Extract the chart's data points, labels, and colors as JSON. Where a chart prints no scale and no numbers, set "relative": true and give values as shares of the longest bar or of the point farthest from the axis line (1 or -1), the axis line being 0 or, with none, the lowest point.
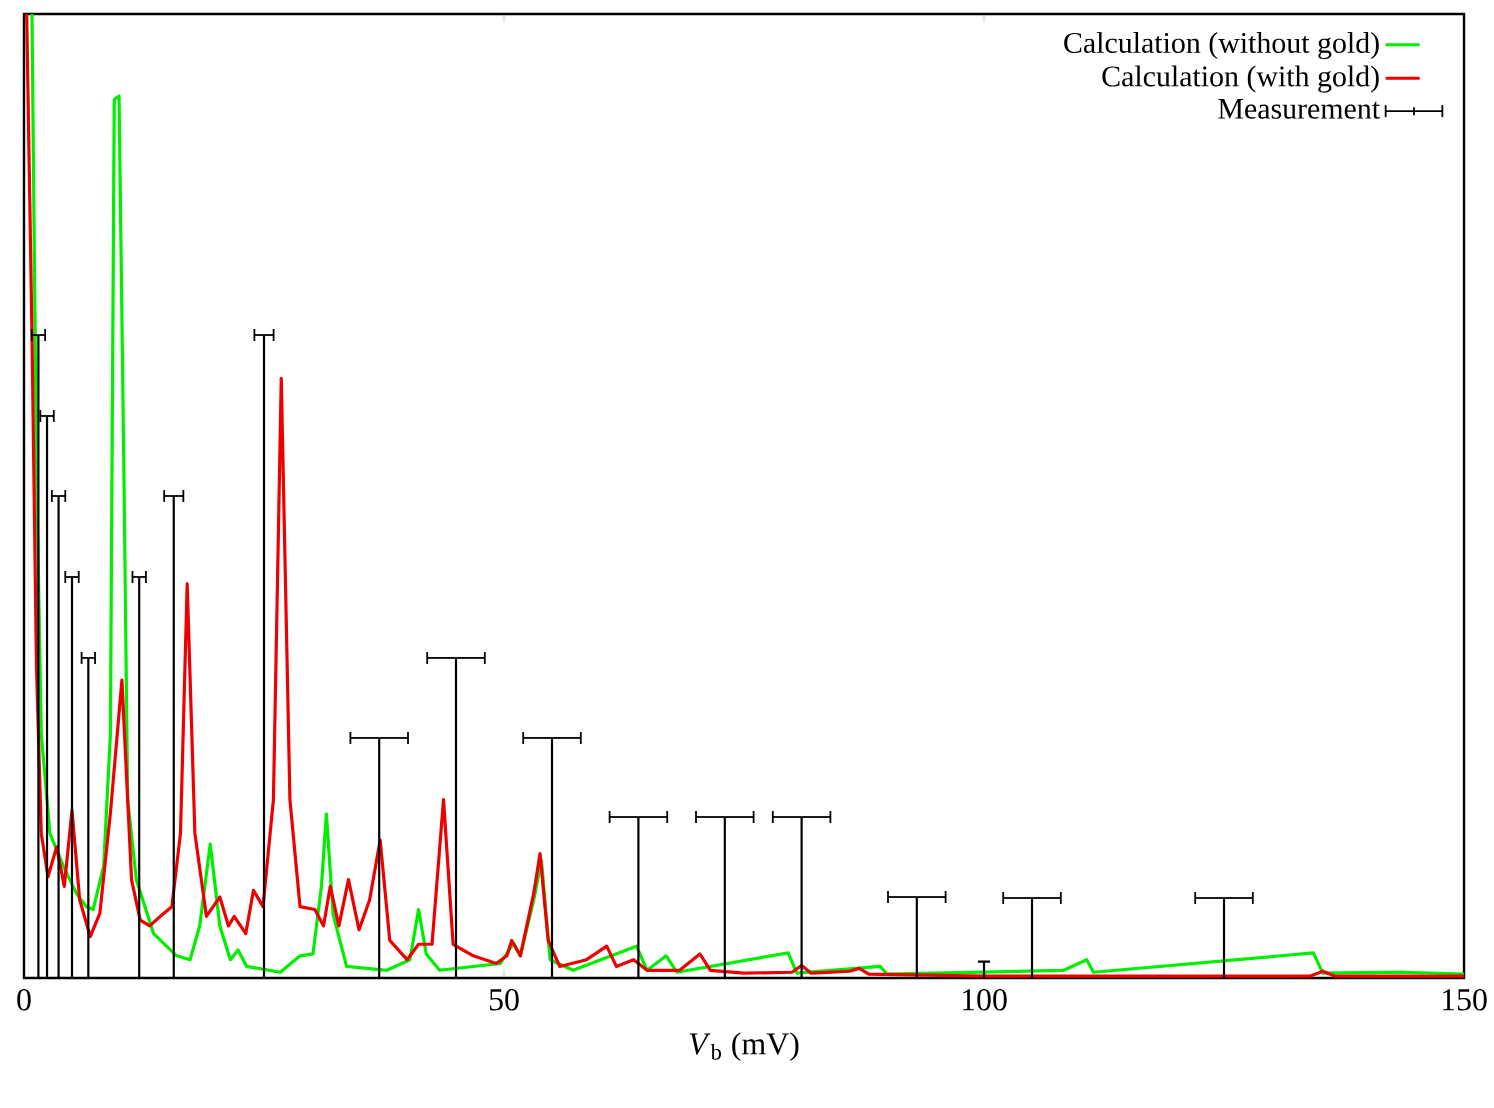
{
  "chart_data": {
    "type": "line",
    "relative": true,
    "xlabel": "*V*$_{b}$ (mV)",
    "xlim": [
      0,
      150
    ],
    "xticks": [
      0,
      50,
      100,
      150
    ],
    "legend": "top right",
    "tick_labels": "x",
    "series": [
      {
        "name": "Calculation (without gold)",
        "color": "#00ee00",
        "x": [
          0.83,
          1.3,
          1.8,
          2.7,
          4.1,
          5.5,
          6.5,
          7.2,
          8.3,
          9.0,
          9.4,
          9.9,
          10.4,
          10.8,
          11.7,
          13.5,
          15.9,
          17.3,
          18.3,
          19.4,
          20.4,
          21.5,
          22.3,
          23.2,
          26.7,
          28.75,
          30.1,
          30.98,
          31.5,
          32.2,
          33.6,
          37.8,
          40.2,
          41.1,
          41.9,
          43.3,
          49.6,
          51.0,
          51.7,
          53.1,
          53.9,
          54.8,
          57.2,
          63.8,
          64.9,
          66.9,
          68.0,
          79.6,
          80.5,
          89.2,
          89.9,
          108.3,
          110.7,
          111.4,
          134.3,
          135.3,
          143.7,
          150
        ],
        "values": [
          1.0,
          0.531,
          0.253,
          0.15,
          0.116,
          0.087,
          0.074,
          0.071,
          0.116,
          0.253,
          0.911,
          0.915,
          0.531,
          0.185,
          0.102,
          0.046,
          0.023,
          0.019,
          0.054,
          0.139,
          0.054,
          0.019,
          0.029,
          0.012,
          0.006,
          0.023,
          0.025,
          0.095,
          0.17,
          0.066,
          0.012,
          0.008,
          0.019,
          0.071,
          0.025,
          0.008,
          0.015,
          0.036,
          0.023,
          0.081,
          0.122,
          0.019,
          0.008,
          0.033,
          0.008,
          0.023,
          0.006,
          0.026,
          0.005,
          0.012,
          0.004,
          0.008,
          0.019,
          0.006,
          0.026,
          0.005,
          0.006,
          0.004
        ]
      },
      {
        "name": "Calculation (with gold)",
        "color": "#ee0000",
        "x": [
          0.28,
          0.83,
          1.3,
          1.8,
          2.5,
          3.4,
          4.2,
          5.0,
          5.8,
          6.9,
          7.9,
          9.0,
          10.2,
          11.2,
          12.1,
          13.1,
          14.2,
          15.4,
          16.3,
          17.0,
          17.8,
          19.0,
          20.4,
          21.3,
          21.9,
          23.1,
          23.9,
          24.9,
          25.98,
          26.8,
          27.7,
          28.75,
          30.3,
          31.2,
          31.9,
          32.8,
          33.8,
          34.9,
          36.0,
          37.1,
          38.1,
          39.9,
          41.1,
          42.5,
          43.7,
          44.7,
          46.8,
          49.2,
          50.3,
          50.8,
          51.7,
          53.1,
          53.75,
          54.6,
          55.8,
          58.6,
          60.7,
          61.7,
          63.5,
          64.9,
          68.3,
          70.4,
          71.5,
          75,
          80,
          81,
          82,
          86,
          87,
          88,
          100,
          134,
          135.3,
          136.5,
          150
        ],
        "values": [
          1.0,
          0.669,
          0.323,
          0.15,
          0.105,
          0.136,
          0.095,
          0.174,
          0.081,
          0.043,
          0.067,
          0.171,
          0.309,
          0.102,
          0.06,
          0.054,
          0.064,
          0.074,
          0.15,
          0.409,
          0.15,
          0.064,
          0.084,
          0.054,
          0.064,
          0.046,
          0.091,
          0.074,
          0.185,
          0.622,
          0.185,
          0.074,
          0.071,
          0.054,
          0.095,
          0.054,
          0.102,
          0.05,
          0.081,
          0.143,
          0.039,
          0.019,
          0.035,
          0.035,
          0.185,
          0.035,
          0.023,
          0.015,
          0.023,
          0.039,
          0.023,
          0.088,
          0.129,
          0.039,
          0.012,
          0.019,
          0.033,
          0.012,
          0.019,
          0.008,
          0.008,
          0.025,
          0.008,
          0.005,
          0.006,
          0.013,
          0.005,
          0.007,
          0.01,
          0.004,
          0.002,
          0.002,
          0.007,
          0.002,
          0.002
        ]
      },
      {
        "name": "Measurement",
        "color": "#000000",
        "type": "bar",
        "x": [
          1.5,
          2.4,
          3.6,
          5.0,
          6.7,
          12.0,
          15.6,
          25.0,
          37.0,
          45.0,
          55.0,
          64.0,
          73.0,
          81.0,
          93.0,
          100.0,
          105.0,
          125.0
        ],
        "values": [
          0.667,
          0.583,
          0.5,
          0.416,
          0.332,
          0.416,
          0.5,
          0.667,
          0.249,
          0.332,
          0.249,
          0.167,
          0.167,
          0.167,
          0.084,
          0.017,
          0.083,
          0.083
        ],
        "xerrors": [
          0.7,
          0.7,
          0.7,
          0.7,
          0.7,
          0.7,
          1,
          1,
          3,
          3,
          3,
          3,
          3,
          3,
          3,
          null,
          3,
          3
        ]
      }
    ]
  }
}
